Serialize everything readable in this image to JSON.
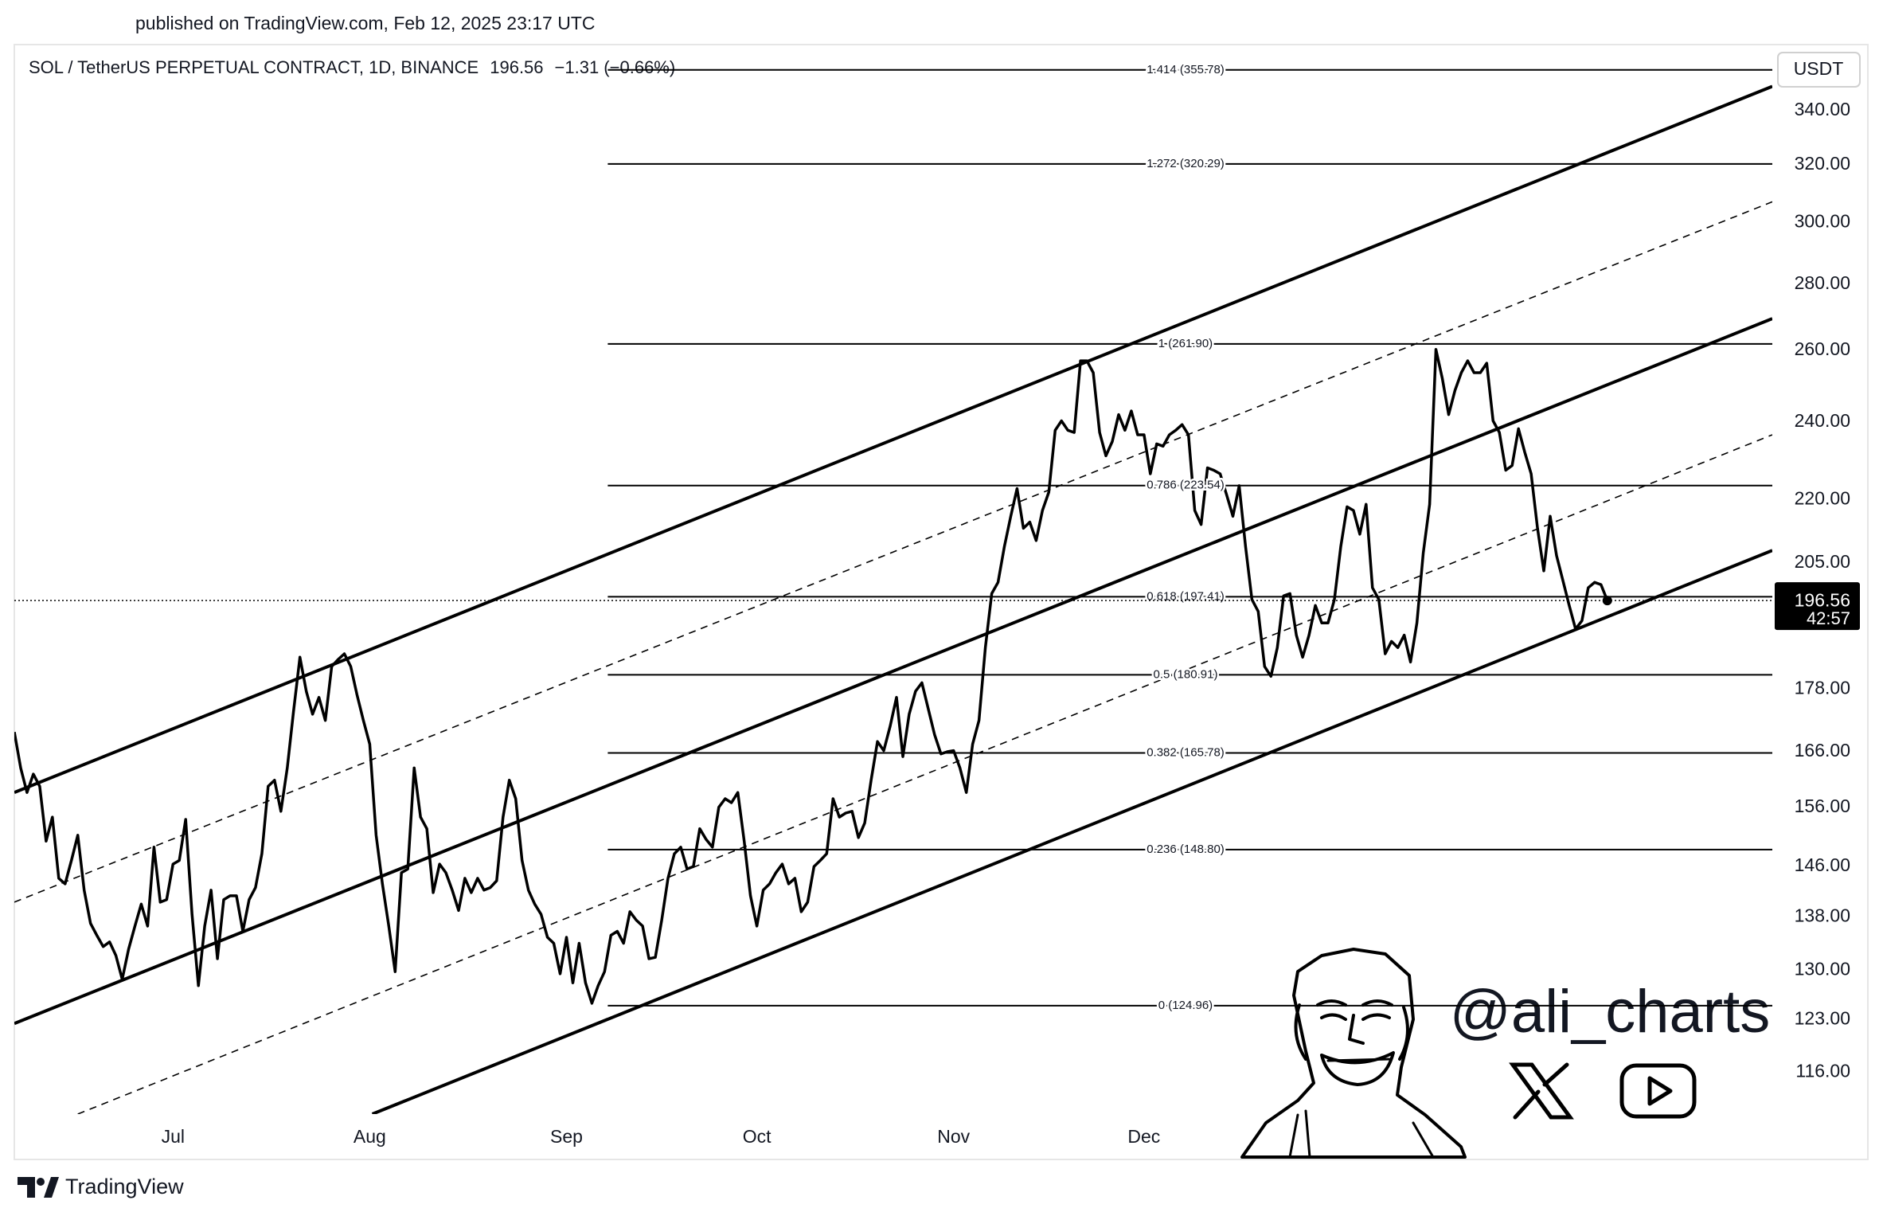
{
  "header": {
    "published": "published on TradingView.com, Feb 12, 2025 23:17 UTC"
  },
  "chart_data": {
    "type": "line",
    "title": "SOL / TetherUS PERPETUAL CONTRACT, 1D, BINANCE",
    "change": "−1.31 (−0.66%)",
    "y_unit": "USDT",
    "countdown": "42:57",
    "color": "#000000",
    "y_scale": "log",
    "values": [
      169.7,
      163,
      158.6,
      161.9,
      159.7,
      150.2,
      154.3,
      144.1,
      143.2,
      147,
      151.2,
      142.2,
      137,
      135.2,
      133.5,
      134.2,
      132.2,
      128.7,
      133.1,
      136.6,
      140,
      136.6,
      149.2,
      140.3,
      140.7,
      146.4,
      147,
      153.9,
      138.4,
      127.8,
      136.6,
      142.2,
      131.7,
      140.7,
      141.3,
      141.3,
      135.8,
      140.7,
      142.6,
      148.1,
      159.7,
      160.8,
      155.3,
      163,
      173.7,
      184.5,
      177.6,
      173.1,
      176.4,
      171.9,
      182.6,
      184,
      185.2,
      182.6,
      176.9,
      171.9,
      167.4,
      151.2,
      143.2,
      136.6,
      129.8,
      145,
      145.6,
      163,
      154.3,
      152.3,
      141.8,
      146.4,
      145,
      142.2,
      139,
      144.1,
      141.8,
      144.1,
      142.2,
      142.6,
      143.7,
      154.3,
      160.8,
      157.5,
      147,
      142.2,
      140,
      138.4,
      134.9,
      134,
      129.5,
      134.9,
      128.2,
      134,
      128.2,
      125.3,
      127.8,
      129.8,
      135.2,
      135.8,
      134,
      138.8,
      137.5,
      136.6,
      131.7,
      131.9,
      137.5,
      144.1,
      148.1,
      149.2,
      145.6,
      146,
      152.3,
      150.5,
      149.2,
      156,
      157.5,
      156.8,
      158.6,
      150.2,
      141.3,
      136.6,
      142.2,
      143.2,
      145,
      146.4,
      143.2,
      144.1,
      138.8,
      140.3,
      146,
      147,
      148.1,
      157.5,
      154.3,
      155,
      155.3,
      150.8,
      153.3,
      160.8,
      167.9,
      166.2,
      170.8,
      176.4,
      165.1,
      173.1,
      177.6,
      179.3,
      174.2,
      169.2,
      165.6,
      166,
      166.2,
      163,
      158.6,
      167.4,
      171.9,
      186.5,
      198.1,
      200.6,
      208.8,
      216,
      222.8,
      213.1,
      214.6,
      210.2,
      217.4,
      221.9,
      237.8,
      240.3,
      237.8,
      237.2,
      257,
      257,
      253.6,
      237.2,
      231.1,
      234.8,
      242,
      237.8,
      243,
      236.6,
      236.6,
      226.5,
      234.2,
      233.6,
      236.6,
      237.8,
      239.3,
      236.6,
      217.4,
      214,
      228,
      227.4,
      226.5,
      221.3,
      216,
      223.5,
      208.8,
      196.8,
      194.2,
      182.6,
      180.6,
      186.5,
      197.6,
      198.1,
      189.1,
      184.5,
      189.1,
      195.5,
      191.7,
      191.7,
      196.8,
      208.8,
      218.3,
      217.4,
      211.7,
      218.9,
      199.4,
      196.8,
      185.2,
      187.8,
      186.5,
      189.1,
      183.5,
      191.7,
      207.3,
      218.9,
      260.3,
      252,
      242,
      248.6,
      253.6,
      257,
      253.6,
      253.6,
      256.3,
      240.3,
      237.2,
      227.4,
      228.6,
      238.2,
      232,
      226.5,
      213.1,
      203.2,
      216,
      206.7,
      201,
      195.5,
      190.4,
      192.2,
      199.4,
      200.6,
      200.1,
      196.56
    ],
    "xlim": [
      0,
      277
    ],
    "xticks": [
      {
        "value": 25,
        "label": "Jul"
      },
      {
        "value": 56,
        "label": "Aug"
      },
      {
        "value": 87,
        "label": "Sep"
      },
      {
        "value": 117,
        "label": "Oct"
      },
      {
        "value": 148,
        "label": "Nov"
      },
      {
        "value": 178,
        "label": "Dec"
      }
    ],
    "ylim": [
      110.7,
      366
    ],
    "yticks": [
      {
        "value": 340,
        "label": "340.00"
      },
      {
        "value": 320,
        "label": "320.00"
      },
      {
        "value": 300,
        "label": "300.00"
      },
      {
        "value": 280,
        "label": "280.00"
      },
      {
        "value": 260,
        "label": "260.00"
      },
      {
        "value": 240,
        "label": "240.00"
      },
      {
        "value": 220,
        "label": "220.00"
      },
      {
        "value": 205,
        "label": "205.00"
      },
      {
        "value": 178,
        "label": "178.00"
      },
      {
        "value": 166,
        "label": "166.00"
      },
      {
        "value": 156,
        "label": "156.00"
      },
      {
        "value": 146,
        "label": "146.00"
      },
      {
        "value": 138,
        "label": "138.00"
      },
      {
        "value": 130,
        "label": "130.00"
      },
      {
        "value": 123,
        "label": "123.00"
      },
      {
        "value": 116,
        "label": "116.00"
      }
    ],
    "fib_levels": [
      {
        "value": 355.78,
        "label": "1.414 (355.78)"
      },
      {
        "value": 320.29,
        "label": "1.272 (320.29)"
      },
      {
        "value": 261.9,
        "label": "1 (261.90)"
      },
      {
        "value": 223.54,
        "label": "0.786 (223.54)"
      },
      {
        "value": 197.41,
        "label": "0.618 (197.41)"
      },
      {
        "value": 180.91,
        "label": "0.5 (180.91)"
      },
      {
        "value": 165.78,
        "label": "0.382 (165.78)"
      },
      {
        "value": 148.8,
        "label": "0.236 (148.80)"
      },
      {
        "value": 124.96,
        "label": "0 (124.96)"
      }
    ],
    "trendlines": [
      {
        "x": [
          0,
          277
        ],
        "y": [
          158.6,
          349.3
        ],
        "style": "solid"
      },
      {
        "x": [
          0,
          277
        ],
        "y": [
          140.3,
          307
        ],
        "style": "dashed"
      },
      {
        "x": [
          0,
          277
        ],
        "y": [
          122.5,
          269.4
        ],
        "style": "solid"
      },
      {
        "x": [
          10,
          277
        ],
        "y": [
          110.7,
          236.6
        ],
        "style": "dashed"
      },
      {
        "x": [
          56.4,
          277
        ],
        "y": [
          110.7,
          207.9
        ],
        "style": "solid"
      }
    ]
  },
  "watermark": {
    "handle": "@ali_charts"
  },
  "footer": {
    "brand": "TradingView"
  }
}
